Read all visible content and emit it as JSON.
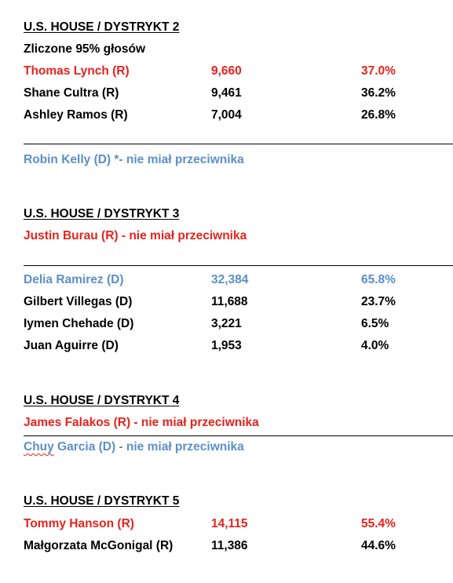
{
  "colors": {
    "republican": "#e8221c",
    "democrat": "#5b8fcb",
    "text": "#000000"
  },
  "district2": {
    "heading": "U.S. HOUSE / DYSTRYKT 2",
    "counted": "Zliczone 95% głosów",
    "candidates": [
      {
        "name": "Thomas Lynch (R)",
        "votes": "9,660",
        "pct": "37.0%"
      },
      {
        "name": "Shane Cultra (R)",
        "votes": "9,461",
        "pct": "36.2%"
      },
      {
        "name": "Ashley Ramos (R)",
        "votes": "7,004",
        "pct": "26.8%"
      }
    ],
    "unopposed": "Robin Kelly (D) *- nie miał przeciwnika"
  },
  "district3": {
    "heading": "U.S. HOUSE / DYSTRYKT 3",
    "unopposed": "Justin Burau (R) - nie miał przeciwnika",
    "candidates": [
      {
        "name": "Delia Ramirez (D)",
        "votes": "32,384",
        "pct": "65.8%"
      },
      {
        "name": "Gilbert Villegas (D)",
        "votes": "11,688",
        "pct": "23.7%"
      },
      {
        "name": "Iymen Chehade (D)",
        "votes": "3,221",
        "pct": "6.5%"
      },
      {
        "name": "Juan Aguirre (D)",
        "votes": "1,953",
        "pct": "4.0%"
      }
    ]
  },
  "district4": {
    "heading": "U.S. HOUSE / DYSTRYKT 4",
    "unopposed_r": "James Falakos (R) - nie miał przeciwnika",
    "unopposed_d_first": "Chuy",
    "unopposed_d_rest": " Garcia (D) - nie miał przeciwnika"
  },
  "district5": {
    "heading": "U.S. HOUSE / DYSTRYKT 5",
    "candidates": [
      {
        "name": "Tommy Hanson (R)",
        "votes": "14,115",
        "pct": "55.4%"
      },
      {
        "name": "Małgorzata McGonigal (R)",
        "votes": "11,386",
        "pct": "44.6%"
      }
    ]
  }
}
